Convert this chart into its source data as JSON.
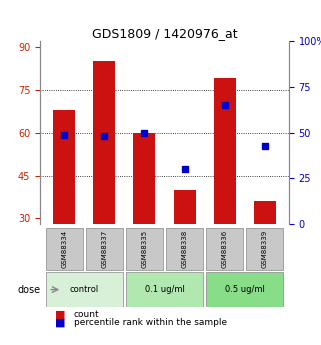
{
  "title": "GDS1809 / 1420976_at",
  "samples": [
    "GSM88334",
    "GSM88337",
    "GSM88335",
    "GSM88338",
    "GSM88336",
    "GSM88339"
  ],
  "counts": [
    68,
    85,
    60,
    40,
    79,
    36
  ],
  "percentiles": [
    49,
    48,
    50,
    30,
    65,
    43
  ],
  "ylim_left": [
    28,
    92
  ],
  "ylim_right": [
    0,
    100
  ],
  "yticks_left": [
    30,
    45,
    60,
    75,
    90
  ],
  "yticks_right": [
    0,
    25,
    50,
    75,
    100
  ],
  "ytick_labels_right": [
    "0",
    "25",
    "50",
    "75",
    "100%"
  ],
  "bar_color": "#cc1111",
  "marker_color": "#0000cc",
  "bar_bottom": 28,
  "groups": [
    {
      "label": "control",
      "indices": [
        0,
        1
      ],
      "color": "#d8f0d8"
    },
    {
      "label": "0.1 ug/ml",
      "indices": [
        2,
        3
      ],
      "color": "#b0e8b0"
    },
    {
      "label": "0.5 ug/ml",
      "indices": [
        4,
        5
      ],
      "color": "#88dd88"
    }
  ],
  "dose_label": "dose",
  "legend_count_label": "count",
  "legend_pct_label": "percentile rank within the sample",
  "grid_color": "#000000",
  "background_color": "#ffffff",
  "plot_bg": "#ffffff",
  "label_color_left": "#cc2200",
  "label_color_right": "#0000cc",
  "xlabel_gray": "#888888",
  "sample_bg": "#c8c8c8",
  "figsize": [
    3.21,
    3.45
  ],
  "dpi": 100
}
